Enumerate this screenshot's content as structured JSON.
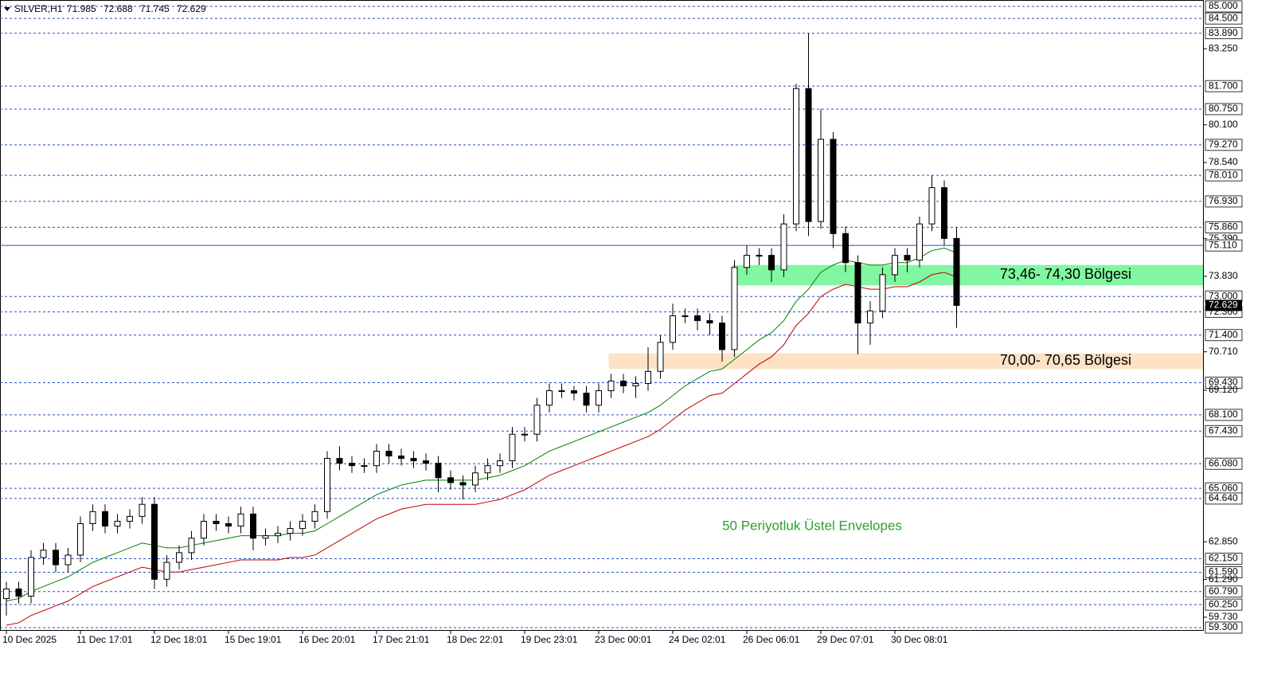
{
  "chart_data": {
    "type": "candlestick",
    "header": {
      "symbol": "SILVER,H1",
      "open": "71.985",
      "high": "72.688",
      "low": "71.745",
      "close": "72.629"
    },
    "x": [
      "10 Dec 2025",
      null,
      null,
      null,
      null,
      null,
      "11 Dec 17:01",
      null,
      null,
      null,
      null,
      null,
      "12 Dec 18:01",
      null,
      null,
      null,
      null,
      null,
      "15 Dec 19:01",
      null,
      null,
      null,
      null,
      null,
      "16 Dec 20:01",
      null,
      null,
      null,
      null,
      null,
      "17 Dec 21:01",
      null,
      null,
      null,
      null,
      null,
      "18 Dec 22:01",
      null,
      null,
      null,
      null,
      null,
      "19 Dec 23:01",
      null,
      null,
      null,
      null,
      null,
      "23 Dec 00:01",
      null,
      null,
      null,
      null,
      null,
      "24 Dec 02:01",
      null,
      null,
      null,
      null,
      null,
      "26 Dec 06:01",
      null,
      null,
      null,
      null,
      null,
      "29 Dec 07:01",
      null,
      null,
      null,
      null,
      null,
      "30 Dec 08:01",
      null,
      null,
      null,
      null,
      null
    ],
    "open": [
      60.5,
      60.9,
      60.6,
      62.2,
      62.5,
      61.9,
      62.3,
      63.6,
      64.1,
      63.5,
      63.7,
      63.9,
      64.4,
      61.3,
      62.0,
      62.4,
      63.0,
      63.7,
      63.6,
      63.5,
      64.0,
      63.0,
      63.1,
      63.2,
      63.4,
      63.7,
      64.1,
      66.3,
      66.1,
      66.0,
      66.0,
      66.6,
      66.4,
      66.3,
      66.2,
      66.1,
      65.5,
      65.3,
      65.2,
      65.7,
      66.0,
      66.2,
      67.3,
      67.3,
      68.5,
      69.1,
      69.1,
      69.0,
      68.5,
      69.1,
      69.5,
      69.3,
      69.4,
      69.9,
      71.1,
      72.2,
      72.2,
      72.0,
      71.9,
      70.8,
      74.2,
      74.7,
      74.7,
      74.1,
      76.0,
      81.6,
      76.1,
      79.5,
      75.6,
      74.4,
      71.9,
      72.4,
      73.9,
      74.7,
      74.5,
      76.0,
      77.5,
      75.4
    ],
    "high": [
      61.2,
      61.2,
      62.5,
      62.8,
      62.8,
      62.6,
      63.9,
      64.4,
      64.4,
      64.0,
      64.2,
      64.7,
      64.7,
      62.3,
      62.7,
      63.3,
      64.0,
      64.0,
      63.9,
      64.3,
      64.3,
      63.4,
      63.5,
      63.7,
      64.0,
      64.4,
      66.6,
      66.8,
      66.4,
      66.3,
      66.9,
      66.9,
      66.7,
      66.6,
      66.5,
      66.4,
      65.8,
      65.6,
      66.0,
      66.3,
      66.5,
      67.6,
      67.6,
      68.8,
      69.4,
      69.4,
      69.3,
      69.3,
      69.4,
      69.8,
      69.8,
      69.7,
      70.9,
      71.4,
      72.7,
      72.5,
      72.5,
      72.3,
      72.2,
      74.5,
      75.1,
      75.0,
      75.0,
      76.4,
      81.8,
      83.89,
      80.75,
      79.8,
      75.9,
      74.7,
      72.8,
      74.2,
      75.0,
      75.0,
      76.3,
      78.01,
      77.8,
      75.86
    ],
    "low": [
      59.8,
      60.3,
      60.3,
      61.9,
      61.6,
      61.6,
      62.0,
      63.3,
      63.2,
      63.2,
      63.4,
      63.6,
      60.9,
      61.0,
      61.7,
      62.1,
      62.7,
      63.3,
      63.2,
      63.2,
      62.5,
      62.7,
      62.8,
      62.9,
      63.1,
      63.4,
      63.8,
      65.8,
      65.7,
      65.7,
      65.7,
      66.1,
      66.0,
      65.9,
      65.8,
      64.9,
      65.0,
      64.6,
      64.9,
      65.4,
      65.7,
      65.9,
      67.0,
      67.0,
      68.2,
      68.8,
      68.7,
      68.2,
      68.2,
      68.8,
      69.0,
      68.8,
      69.1,
      69.6,
      70.8,
      71.9,
      71.6,
      71.4,
      70.3,
      70.5,
      73.9,
      74.3,
      73.6,
      73.8,
      75.7,
      75.5,
      75.8,
      75.0,
      74.0,
      70.6,
      71.0,
      72.1,
      73.6,
      74.0,
      74.2,
      75.7,
      75.1,
      71.7
    ],
    "close": [
      60.9,
      60.6,
      62.2,
      62.5,
      61.9,
      62.3,
      63.6,
      64.1,
      63.5,
      63.7,
      63.9,
      64.4,
      61.3,
      62.0,
      62.4,
      63.0,
      63.7,
      63.6,
      63.5,
      64.0,
      63.0,
      63.1,
      63.2,
      63.4,
      63.7,
      64.1,
      66.3,
      66.1,
      66.0,
      66.0,
      66.6,
      66.4,
      66.3,
      66.2,
      66.1,
      65.5,
      65.3,
      65.2,
      65.7,
      66.0,
      66.2,
      67.3,
      67.3,
      68.5,
      69.1,
      69.1,
      69.0,
      68.5,
      69.1,
      69.5,
      69.3,
      69.4,
      69.9,
      71.1,
      72.2,
      72.2,
      72.0,
      71.9,
      70.8,
      74.2,
      74.7,
      74.7,
      74.1,
      76.0,
      81.6,
      76.1,
      79.5,
      75.6,
      74.4,
      71.9,
      72.4,
      73.9,
      74.7,
      74.5,
      76.0,
      77.5,
      75.4,
      72.629
    ],
    "up_color": "#ffffff",
    "down_color": "#000000",
    "envelopes": [
      {
        "color": "#008000",
        "values": [
          60.4,
          60.5,
          60.8,
          61.0,
          61.2,
          61.4,
          61.7,
          62.0,
          62.2,
          62.4,
          62.6,
          62.8,
          62.7,
          62.6,
          62.6,
          62.7,
          62.8,
          62.9,
          63.0,
          63.1,
          63.1,
          63.1,
          63.1,
          63.2,
          63.2,
          63.3,
          63.6,
          63.9,
          64.2,
          64.5,
          64.8,
          65.0,
          65.2,
          65.3,
          65.4,
          65.4,
          65.4,
          65.4,
          65.4,
          65.5,
          65.6,
          65.8,
          66.0,
          66.3,
          66.6,
          66.8,
          67.0,
          67.2,
          67.4,
          67.6,
          67.8,
          68.0,
          68.2,
          68.5,
          68.9,
          69.3,
          69.6,
          69.9,
          70.0,
          70.4,
          70.8,
          71.2,
          71.5,
          72.0,
          72.8,
          73.3,
          74.0,
          74.3,
          74.5,
          74.4,
          74.3,
          74.3,
          74.4,
          74.4,
          74.6,
          74.9,
          75.0,
          74.8
        ]
      },
      {
        "color": "#c00000",
        "values": [
          59.4,
          59.5,
          59.8,
          60.0,
          60.2,
          60.4,
          60.7,
          61.0,
          61.2,
          61.4,
          61.6,
          61.8,
          61.7,
          61.6,
          61.6,
          61.7,
          61.8,
          61.9,
          62.0,
          62.1,
          62.1,
          62.1,
          62.1,
          62.2,
          62.2,
          62.3,
          62.6,
          62.9,
          63.2,
          63.5,
          63.8,
          64.0,
          64.2,
          64.3,
          64.4,
          64.4,
          64.4,
          64.4,
          64.4,
          64.5,
          64.6,
          64.8,
          65.0,
          65.3,
          65.6,
          65.8,
          66.0,
          66.2,
          66.4,
          66.6,
          66.8,
          67.0,
          67.2,
          67.5,
          67.9,
          68.3,
          68.6,
          68.9,
          69.0,
          69.4,
          69.8,
          70.2,
          70.5,
          71.0,
          71.8,
          72.3,
          73.0,
          73.3,
          73.5,
          73.4,
          73.3,
          73.3,
          73.4,
          73.4,
          73.6,
          73.9,
          74.0,
          73.8
        ]
      }
    ],
    "annotation": "50 Periyotluk Üstel Envelopes",
    "annotation_color": "#2e9e2e",
    "zones": [
      {
        "low": 73.46,
        "high": 74.3,
        "start": 59,
        "label": "73,46- 74,30 Bölgesi",
        "color": "#80f7a0"
      },
      {
        "low": 70.0,
        "high": 70.65,
        "start": 49,
        "label": "70,00- 70,65 Bölgesi",
        "color": "#fde2c6"
      }
    ],
    "ylim": [
      59.3,
      85
    ],
    "yticks": [
      {
        "value": 83.25,
        "label": "83.250"
      },
      {
        "value": 80.1,
        "label": "80.100"
      },
      {
        "value": 78.54,
        "label": "78.540"
      },
      {
        "value": 75.39,
        "label": "75.390"
      },
      {
        "value": 73.83,
        "label": "73.830"
      },
      {
        "value": 70.71,
        "label": "70.710"
      },
      {
        "value": 69.12,
        "label": "69.120"
      },
      {
        "value": 62.85,
        "label": "62.850"
      },
      {
        "value": 61.29,
        "label": "61.290"
      },
      {
        "value": 59.73,
        "label": "59.730"
      }
    ],
    "levels": [
      {
        "value": 85,
        "label": "85.000"
      },
      {
        "value": 84.5,
        "label": "84.500"
      },
      {
        "value": 83.89,
        "label": "83.890"
      },
      {
        "value": 81.7,
        "label": "81.700"
      },
      {
        "value": 80.75,
        "label": "80.750"
      },
      {
        "value": 79.27,
        "label": "79.270"
      },
      {
        "value": 78.01,
        "label": "78.010"
      },
      {
        "value": 76.93,
        "label": "76.930"
      },
      {
        "value": 75.86,
        "label": "75.860"
      },
      {
        "value": 73,
        "label": "73.000"
      },
      {
        "value": 72.36,
        "label": "72.360"
      },
      {
        "value": 71.4,
        "label": "71.400"
      },
      {
        "value": 69.43,
        "label": "69.430"
      },
      {
        "value": 68.1,
        "label": "68.100"
      },
      {
        "value": 67.43,
        "label": "67.430"
      },
      {
        "value": 66.08,
        "label": "66.080"
      },
      {
        "value": 65.06,
        "label": "65.060"
      },
      {
        "value": 64.64,
        "label": "64.640"
      },
      {
        "value": 62.15,
        "label": "62.150"
      },
      {
        "value": 61.59,
        "label": "61.590"
      },
      {
        "value": 60.79,
        "label": "60.790"
      },
      {
        "value": 60.25,
        "label": "60.250"
      },
      {
        "value": 59.3,
        "label": "59.300"
      }
    ],
    "level_color": "#2a4fc4",
    "hline": {
      "value": 75.11,
      "label": "75.110"
    },
    "last_price": {
      "value": 72.629,
      "label": "72.629"
    }
  }
}
